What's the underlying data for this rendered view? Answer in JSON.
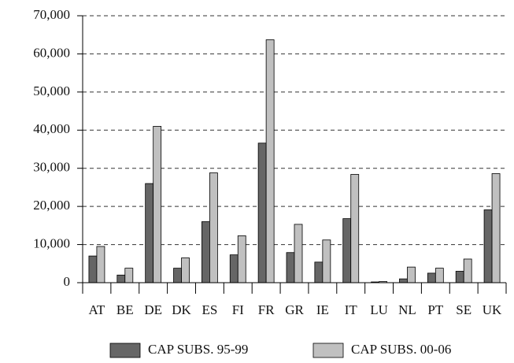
{
  "chart_data": {
    "type": "bar",
    "categories": [
      "AT",
      "BE",
      "DE",
      "DK",
      "ES",
      "FI",
      "FR",
      "GR",
      "IE",
      "IT",
      "LU",
      "NL",
      "PT",
      "SE",
      "UK"
    ],
    "series": [
      {
        "name": "CAP SUBS. 95-99",
        "color": "#666666",
        "values": [
          7000,
          2000,
          26000,
          3800,
          16000,
          7300,
          36600,
          7900,
          5400,
          16800,
          200,
          1000,
          2500,
          3000,
          19100
        ]
      },
      {
        "name": "CAP SUBS. 00-06",
        "color": "#c0c0c0",
        "values": [
          9500,
          3800,
          41000,
          6500,
          28800,
          12300,
          63700,
          15300,
          11200,
          28400,
          300,
          4100,
          3800,
          6200,
          28600
        ]
      }
    ],
    "ylim": [
      0,
      70000
    ],
    "yticks": [
      0,
      {
        "value": 10000,
        "label": "10,000"
      },
      {
        "value": 20000,
        "label": "20,000"
      },
      {
        "value": 30000,
        "label": "30,000"
      },
      {
        "value": 40000,
        "label": "40,000"
      },
      {
        "value": 50000,
        "label": "50,000"
      },
      {
        "value": 60000,
        "label": "60,000"
      },
      {
        "value": 70000,
        "label": "70,000"
      }
    ],
    "grid": true
  }
}
